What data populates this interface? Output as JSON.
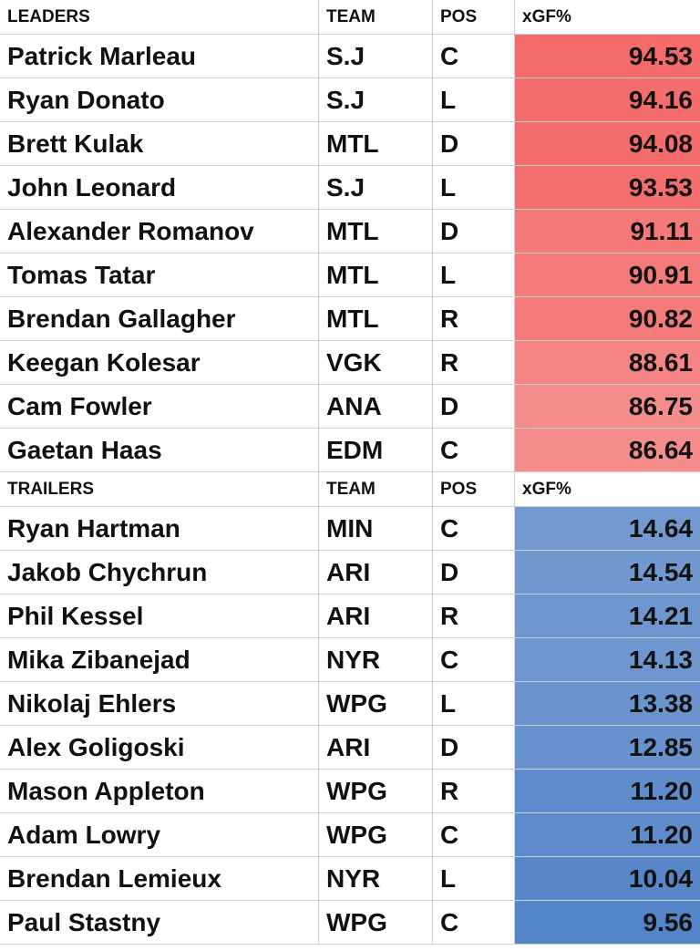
{
  "sections": [
    {
      "header": [
        "LEADERS",
        "TEAM",
        "POS",
        "xGF%"
      ],
      "rows": [
        [
          "Patrick Marleau",
          "S.J",
          "C",
          "94.53"
        ],
        [
          "Ryan Donato",
          "S.J",
          "L",
          "94.16"
        ],
        [
          "Brett Kulak",
          "MTL",
          "D",
          "94.08"
        ],
        [
          "John Leonard",
          "S.J",
          "L",
          "93.53"
        ],
        [
          "Alexander Romanov",
          "MTL",
          "D",
          "91.11"
        ],
        [
          "Tomas Tatar",
          "MTL",
          "L",
          "90.91"
        ],
        [
          "Brendan Gallagher",
          "MTL",
          "R",
          "90.82"
        ],
        [
          "Keegan Kolesar",
          "VGK",
          "R",
          "88.61"
        ],
        [
          "Cam Fowler",
          "ANA",
          "D",
          "86.75"
        ],
        [
          "Gaetan Haas",
          "EDM",
          "C",
          "86.64"
        ]
      ]
    },
    {
      "header": [
        "TRAILERS",
        "TEAM",
        "POS",
        "xGF%"
      ],
      "rows": [
        [
          "Ryan Hartman",
          "MIN",
          "C",
          "14.64"
        ],
        [
          "Jakob Chychrun",
          "ARI",
          "D",
          "14.54"
        ],
        [
          "Phil Kessel",
          "ARI",
          "R",
          "14.21"
        ],
        [
          "Mika Zibanejad",
          "NYR",
          "C",
          "14.13"
        ],
        [
          "Nikolaj Ehlers",
          "WPG",
          "L",
          "13.38"
        ],
        [
          "Alex Goligoski",
          "ARI",
          "D",
          "12.85"
        ],
        [
          "Mason Appleton",
          "WPG",
          "R",
          "11.20"
        ],
        [
          "Adam Lowry",
          "WPG",
          "C",
          "11.20"
        ],
        [
          "Brendan Lemieux",
          "NYR",
          "L",
          "10.04"
        ],
        [
          "Paul Stastny",
          "WPG",
          "C",
          "9.56"
        ]
      ]
    }
  ]
}
